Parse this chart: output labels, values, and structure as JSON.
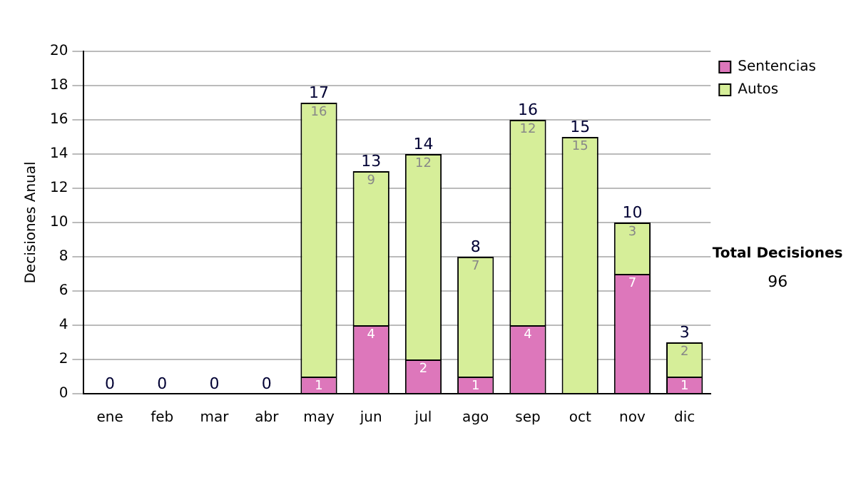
{
  "chart_data": {
    "type": "bar",
    "stacked": true,
    "categories": [
      "ene",
      "feb",
      "mar",
      "abr",
      "may",
      "jun",
      "jul",
      "ago",
      "sep",
      "oct",
      "nov",
      "dic"
    ],
    "series": [
      {
        "name": "Sentencias",
        "color": "#dd77bb",
        "values": [
          0,
          0,
          0,
          0,
          1,
          4,
          2,
          1,
          4,
          0,
          7,
          1
        ],
        "value_labels": [
          null,
          null,
          null,
          null,
          "1",
          "4",
          "2",
          "1",
          "4",
          null,
          "7",
          "1"
        ]
      },
      {
        "name": "Autos",
        "color": "#d6ee99",
        "values": [
          0,
          0,
          0,
          0,
          16,
          9,
          12,
          7,
          12,
          15,
          3,
          2
        ],
        "value_labels": [
          null,
          null,
          null,
          null,
          "16",
          "9",
          "12",
          "7",
          "12",
          "15",
          "3",
          "2"
        ]
      }
    ],
    "totals": [
      "0",
      "0",
      "0",
      "0",
      "17",
      "13",
      "14",
      "8",
      "16",
      "15",
      "10",
      "3"
    ],
    "ylabel": "Decisiones Anual",
    "ylim": [
      0,
      20
    ],
    "yticks": [
      0,
      2,
      4,
      6,
      8,
      10,
      12,
      14,
      16,
      18,
      20
    ],
    "grid": "y",
    "legend": "right",
    "annotations": [
      "Total Decisiones",
      "96"
    ]
  }
}
